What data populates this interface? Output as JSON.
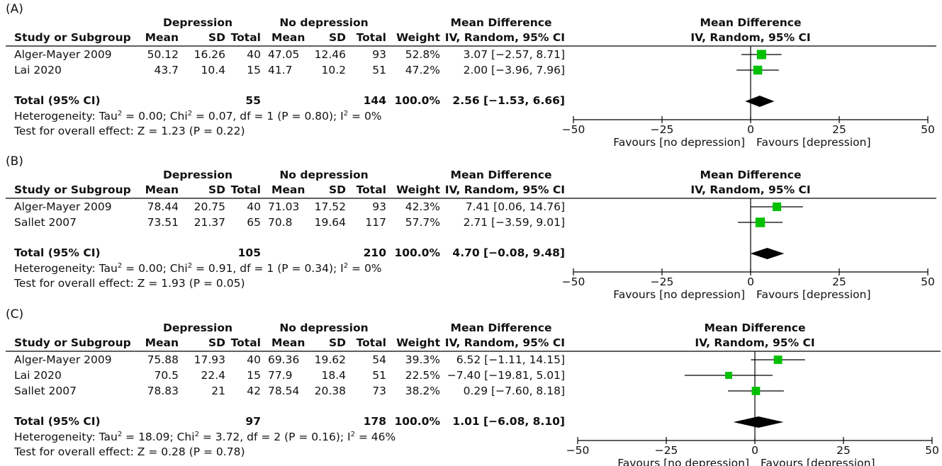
{
  "headers": {
    "group1": "Depression",
    "group2": "No depression",
    "effect_top": "Mean Difference",
    "study": "Study or Subgroup",
    "mean": "Mean",
    "sd": "SD",
    "total": "Total",
    "weight": "Weight",
    "effect_bottom": "IV, Random, 95% CI",
    "plot_top": "Mean Difference",
    "plot_bottom": "IV, Random, 95% CI",
    "favours_left": "Favours [no depression]",
    "favours_right": "Favours [depression]",
    "total_label": "Total (95% CI)"
  },
  "panels": [
    {
      "label": "(A)",
      "rows": [
        {
          "study": "Alger-Mayer 2009",
          "m1": "50.12",
          "sd1": "16.26",
          "n1": "40",
          "m2": "47.05",
          "sd2": "12.46",
          "n2": "93",
          "weight": "52.8%",
          "ci_text": "3.07 [−2.57, 8.71]"
        },
        {
          "study": "Lai 2020",
          "m1": "43.7",
          "sd1": "10.4",
          "n1": "15",
          "m2": "41.7",
          "sd2": "10.2",
          "n2": "51",
          "weight": "47.2%",
          "ci_text": "2.00 [−3.96, 7.96]"
        }
      ],
      "total": {
        "n1": "55",
        "n2": "144",
        "weight": "100.0%",
        "ci_text": "2.56 [−1.53, 6.66]"
      },
      "heterogeneity": {
        "prefix": "Heterogeneity: Tau",
        "tau": " = 0.00; Chi",
        "chi": " = 0.07, df = 1 (P = 0.80); I",
        "i2": " = 0%"
      },
      "overall": "Test for overall effect: Z = 1.23 (P = 0.22)"
    },
    {
      "label": "(B)",
      "rows": [
        {
          "study": "Alger-Mayer 2009",
          "m1": "78.44",
          "sd1": "20.75",
          "n1": "40",
          "m2": "71.03",
          "sd2": "17.52",
          "n2": "93",
          "weight": "42.3%",
          "ci_text": "7.41 [0.06, 14.76]"
        },
        {
          "study": "Sallet 2007",
          "m1": "73.51",
          "sd1": "21.37",
          "n1": "65",
          "m2": "70.8",
          "sd2": "19.64",
          "n2": "117",
          "weight": "57.7%",
          "ci_text": "2.71 [−3.59, 9.01]"
        }
      ],
      "total": {
        "n1": "105",
        "n2": "210",
        "weight": "100.0%",
        "ci_text": "4.70 [−0.08, 9.48]"
      },
      "heterogeneity": {
        "prefix": "Heterogeneity: Tau",
        "tau": " = 0.00; Chi",
        "chi": " = 0.91, df = 1 (P = 0.34); I",
        "i2": " = 0%"
      },
      "overall": "Test for overall effect: Z = 1.93 (P = 0.05)"
    },
    {
      "label": "(C)",
      "rows": [
        {
          "study": "Alger-Mayer 2009",
          "m1": "75.88",
          "sd1": "17.93",
          "n1": "40",
          "m2": "69.36",
          "sd2": "19.62",
          "n2": "54",
          "weight": "39.3%",
          "ci_text": "6.52 [−1.11, 14.15]"
        },
        {
          "study": "Lai 2020",
          "m1": "70.5",
          "sd1": "22.4",
          "n1": "15",
          "m2": "77.9",
          "sd2": "18.4",
          "n2": "51",
          "weight": "22.5%",
          "ci_text": "−7.40 [−19.81, 5.01]"
        },
        {
          "study": "Sallet 2007",
          "m1": "78.83",
          "sd1": "21",
          "n1": "42",
          "m2": "78.54",
          "sd2": "20.38",
          "n2": "73",
          "weight": "38.2%",
          "ci_text": "0.29 [−7.60, 8.18]"
        }
      ],
      "total": {
        "n1": "97",
        "n2": "178",
        "weight": "100.0%",
        "ci_text": "1.01 [−6.08, 8.10]"
      },
      "heterogeneity": {
        "prefix": "Heterogeneity: Tau",
        "tau": " = 18.09; Chi",
        "chi": " = 3.72, df = 2 (P = 0.16); I",
        "i2": " = 46%"
      },
      "overall": "Test for overall effect: Z = 0.28 (P = 0.78)"
    }
  ],
  "colors": {
    "square": "#00c000",
    "diamond": "#000000",
    "line": "#000000"
  },
  "chart_data": [
    {
      "type": "forest",
      "xlim": [
        -50,
        50
      ],
      "xticks": [
        -50,
        -25,
        0,
        25,
        50
      ],
      "studies": [
        {
          "name": "Alger-Mayer 2009",
          "md": 3.07,
          "lo": -2.57,
          "hi": 8.71,
          "weight": 52.8
        },
        {
          "name": "Lai 2020",
          "md": 2.0,
          "lo": -3.96,
          "hi": 7.96,
          "weight": 47.2
        }
      ],
      "pooled": {
        "md": 2.56,
        "lo": -1.53,
        "hi": 6.66
      }
    },
    {
      "type": "forest",
      "xlim": [
        -50,
        50
      ],
      "xticks": [
        -50,
        -25,
        0,
        25,
        50
      ],
      "studies": [
        {
          "name": "Alger-Mayer 2009",
          "md": 7.41,
          "lo": 0.06,
          "hi": 14.76,
          "weight": 42.3
        },
        {
          "name": "Sallet 2007",
          "md": 2.71,
          "lo": -3.59,
          "hi": 9.01,
          "weight": 57.7
        }
      ],
      "pooled": {
        "md": 4.7,
        "lo": -0.08,
        "hi": 9.48
      }
    },
    {
      "type": "forest",
      "xlim": [
        -50,
        50
      ],
      "xticks": [
        -50,
        -25,
        0,
        25,
        50
      ],
      "studies": [
        {
          "name": "Alger-Mayer 2009",
          "md": 6.52,
          "lo": -1.11,
          "hi": 14.15,
          "weight": 39.3
        },
        {
          "name": "Lai 2020",
          "md": -7.4,
          "lo": -19.81,
          "hi": 5.01,
          "weight": 22.5
        },
        {
          "name": "Sallet 2007",
          "md": 0.29,
          "lo": -7.6,
          "hi": 8.18,
          "weight": 38.2
        }
      ],
      "pooled": {
        "md": 1.01,
        "lo": -6.08,
        "hi": 8.1
      }
    }
  ]
}
